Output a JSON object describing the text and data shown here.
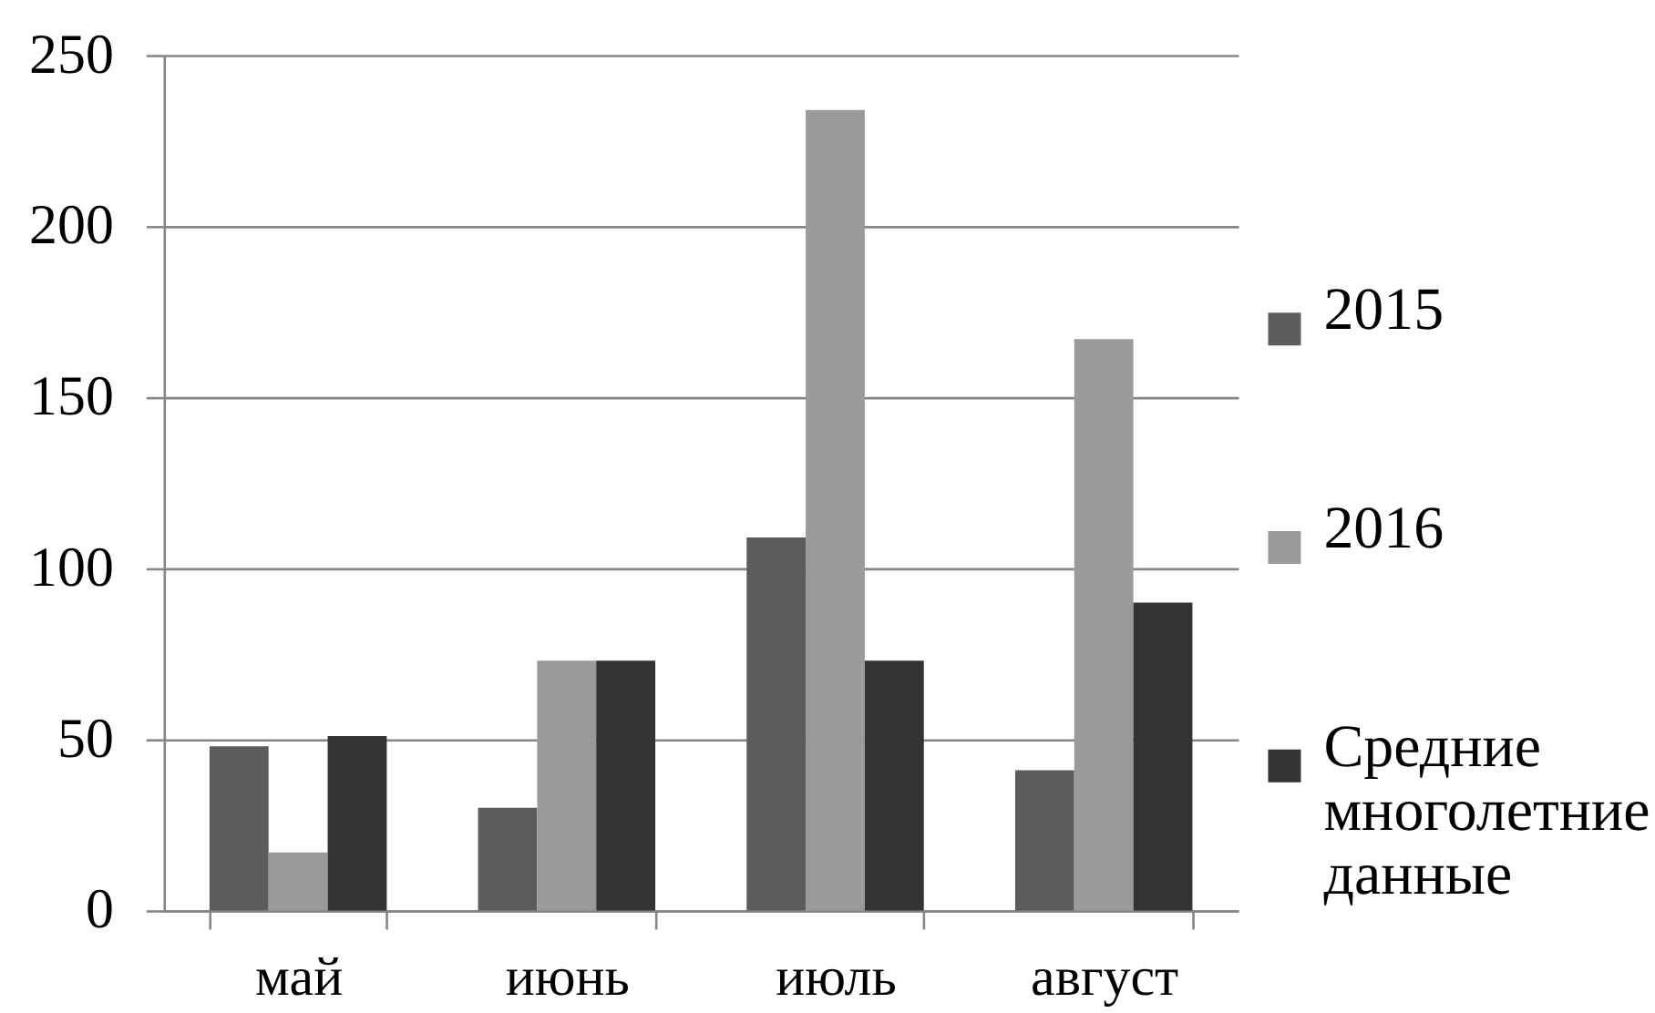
{
  "chart_data": {
    "type": "bar",
    "categories": [
      "май",
      "июнь",
      "июль",
      "август"
    ],
    "series": [
      {
        "name": "2015",
        "color": "#5c5c5c",
        "values": [
          48,
          30,
          109,
          41
        ]
      },
      {
        "name": "2016",
        "color": "#9a9a9a",
        "values": [
          17,
          73,
          234,
          167
        ]
      },
      {
        "name": "Средние многолетние данные",
        "color": "#333333",
        "values": [
          51,
          73,
          73,
          90
        ]
      }
    ],
    "ylim": [
      0,
      250
    ],
    "yticks": [
      0,
      50,
      100,
      150,
      200,
      250
    ],
    "grid": "y",
    "legend": "right"
  }
}
